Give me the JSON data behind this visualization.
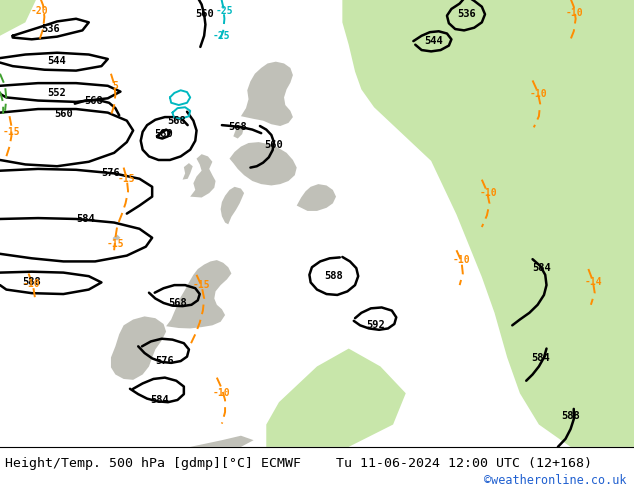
{
  "title_left": "Height/Temp. 500 hPa [gdmp][°C] ECMWF",
  "title_right": "Tu 11-06-2024 12:00 UTC (12+168)",
  "watermark": "©weatheronline.co.uk",
  "bg_gray": "#d2d2d2",
  "bg_green": "#c8e6aa",
  "bg_ocean": "#c8d8e0",
  "land_gray": "#c0c0b8",
  "contour_color": "#000000",
  "orange_color": "#ff8c00",
  "cyan_color": "#00b8c0",
  "green_line_color": "#40a030",
  "bottom_bar_color": "#ffffff",
  "title_fontsize": 9.5,
  "watermark_color": "#2060d0",
  "figsize": [
    6.34,
    4.9
  ],
  "dpi": 100
}
